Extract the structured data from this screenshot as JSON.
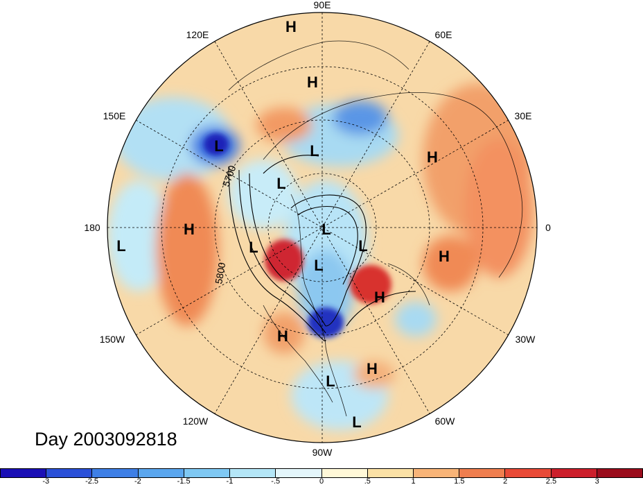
{
  "title": "Day 2003092818",
  "longitude_labels": [
    "90E",
    "120E",
    "60E",
    "150E",
    "30E",
    "180",
    "0",
    "150W",
    "30W",
    "120W",
    "60W",
    "90W"
  ],
  "contour_labels": [
    "5700",
    "5800"
  ],
  "pressure_centers": [
    "H",
    "H",
    "L",
    "L",
    "L",
    "H",
    "L",
    "L",
    "L",
    "L",
    "H",
    "H",
    "H",
    "H",
    "L",
    "L",
    "H",
    "L"
  ],
  "colorbar": {
    "ticks": [
      "-3",
      "-2.5",
      "-2",
      "-1.5",
      "-1",
      "-.5",
      "0",
      ".5",
      "1",
      "1.5",
      "2",
      "2.5",
      "3"
    ],
    "colors": [
      "#1a0fb5",
      "#2a50d8",
      "#3e7fe6",
      "#5aa6ee",
      "#7fc8f3",
      "#b4e6f7",
      "#e4f6fb",
      "#fff8d8",
      "#fbe1a6",
      "#f8b478",
      "#ef7e4f",
      "#e84a37",
      "#cc1f2b",
      "#9a0c1c"
    ]
  },
  "map_colors": {
    "background": "#ffffff",
    "ocean_warm": "#f6d7a7",
    "strong_red": "#cf2630",
    "strong_blue": "#2234c4"
  }
}
